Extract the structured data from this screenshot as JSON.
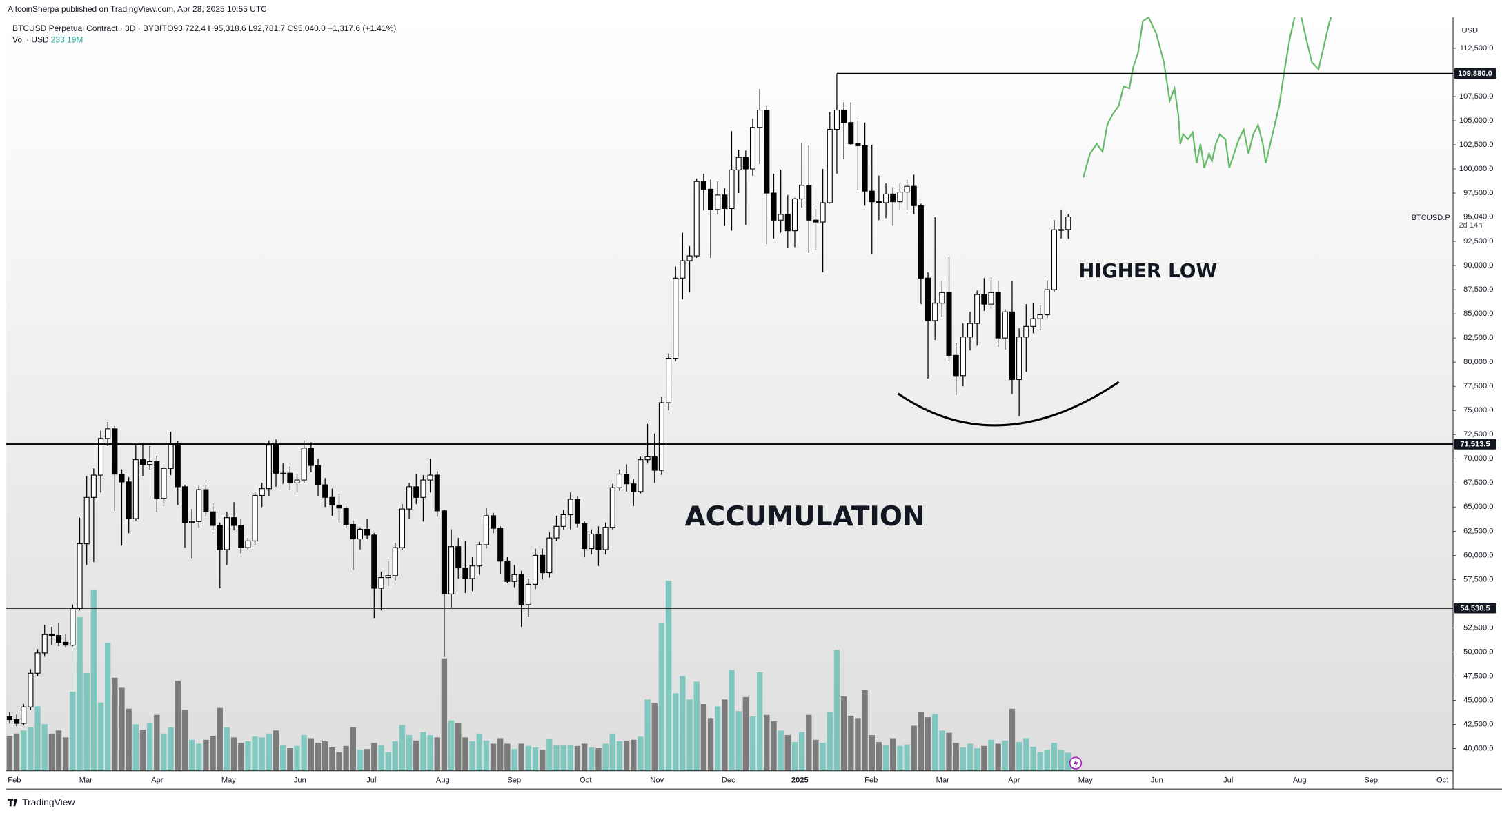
{
  "header": {
    "byline": "AltcoinSherpa published on TradingView.com, Apr 28, 2025 10:55 UTC",
    "symbol": "BTCUSD Perpetual Contract · 3D · BYBIT",
    "ohlc": "O93,722.4  H95,318.6  L92,781.7  C95,040.0  +1,317.6 (+1.41%)",
    "volume_label": "Vol · USD",
    "footer": "TradingView"
  },
  "chart_data": {
    "type": "candlestick",
    "currency": "USD",
    "up_color": "#ffffff",
    "down_color": "#000000",
    "wick_color": "#000000",
    "candles": [
      [
        43300,
        43800,
        42600,
        43000
      ],
      [
        43000,
        43500,
        42300,
        42600
      ],
      [
        42600,
        44600,
        42400,
        44300
      ],
      [
        44300,
        48200,
        44000,
        47800
      ],
      [
        47800,
        50300,
        47500,
        49900
      ],
      [
        49900,
        52800,
        49500,
        51800
      ],
      [
        51800,
        52600,
        50700,
        51700
      ],
      [
        51700,
        53000,
        50600,
        51000
      ],
      [
        51000,
        51800,
        50500,
        50700
      ],
      [
        50700,
        54900,
        50600,
        54500
      ],
      [
        54500,
        63900,
        54300,
        61200
      ],
      [
        61200,
        68200,
        59000,
        66000
      ],
      [
        66000,
        69000,
        59300,
        68300
      ],
      [
        68300,
        72900,
        66500,
        72100
      ],
      [
        72100,
        73800,
        71300,
        73100
      ],
      [
        73100,
        73400,
        64600,
        68400
      ],
      [
        68400,
        68900,
        61000,
        67600
      ],
      [
        67600,
        68100,
        62300,
        63800
      ],
      [
        63800,
        71400,
        63600,
        69900
      ],
      [
        69900,
        71600,
        68200,
        69400
      ],
      [
        69400,
        71300,
        68900,
        69700
      ],
      [
        69700,
        70300,
        64500,
        65900
      ],
      [
        65900,
        69200,
        65100,
        69000
      ],
      [
        69000,
        72800,
        68300,
        71600
      ],
      [
        71600,
        71800,
        65200,
        67100
      ],
      [
        67100,
        67300,
        60800,
        63400
      ],
      [
        63400,
        64800,
        59700,
        63500
      ],
      [
        63500,
        67200,
        62900,
        66800
      ],
      [
        66800,
        67300,
        64000,
        64500
      ],
      [
        64500,
        65400,
        62600,
        63100
      ],
      [
        63100,
        63400,
        56600,
        60600
      ],
      [
        60600,
        64500,
        59000,
        63900
      ],
      [
        63900,
        65500,
        62600,
        63100
      ],
      [
        63100,
        63800,
        60200,
        60800
      ],
      [
        60800,
        61800,
        60600,
        61500
      ],
      [
        61500,
        66600,
        61100,
        66200
      ],
      [
        66200,
        67500,
        65000,
        66900
      ],
      [
        66900,
        71900,
        66100,
        71400
      ],
      [
        71400,
        72000,
        67100,
        68500
      ],
      [
        68500,
        69500,
        67400,
        68500
      ],
      [
        68500,
        69200,
        66700,
        67500
      ],
      [
        67500,
        68400,
        66500,
        67800
      ],
      [
        67800,
        71900,
        67500,
        71100
      ],
      [
        71100,
        71700,
        68600,
        69300
      ],
      [
        69300,
        70000,
        66100,
        67300
      ],
      [
        67300,
        68000,
        65000,
        66000
      ],
      [
        66000,
        66900,
        64100,
        65200
      ],
      [
        65200,
        66400,
        63400,
        64900
      ],
      [
        64900,
        65100,
        62800,
        63200
      ],
      [
        63200,
        63600,
        58500,
        61700
      ],
      [
        61700,
        62900,
        60600,
        62700
      ],
      [
        62700,
        63800,
        61700,
        62100
      ],
      [
        62100,
        62300,
        53500,
        56600
      ],
      [
        56600,
        58300,
        54300,
        57700
      ],
      [
        57700,
        59400,
        56800,
        57900
      ],
      [
        57900,
        61300,
        57400,
        60800
      ],
      [
        60800,
        65300,
        60600,
        64800
      ],
      [
        64800,
        67500,
        63800,
        67100
      ],
      [
        67100,
        68400,
        65300,
        66000
      ],
      [
        66000,
        68300,
        63500,
        67800
      ],
      [
        67800,
        70000,
        66500,
        68300
      ],
      [
        68300,
        68700,
        64000,
        64600
      ],
      [
        64600,
        64700,
        49500,
        56000
      ],
      [
        56000,
        62700,
        54600,
        60900
      ],
      [
        60900,
        61800,
        57600,
        58700
      ],
      [
        58700,
        61500,
        56100,
        57600
      ],
      [
        57600,
        59800,
        56300,
        58900
      ],
      [
        58900,
        61400,
        58000,
        61100
      ],
      [
        61100,
        64900,
        60700,
        64100
      ],
      [
        64100,
        64400,
        62300,
        62800
      ],
      [
        62800,
        63000,
        58100,
        59400
      ],
      [
        59400,
        59800,
        57100,
        57300
      ],
      [
        57300,
        59000,
        56700,
        58000
      ],
      [
        58000,
        58400,
        52600,
        54900
      ],
      [
        54900,
        57600,
        53600,
        57000
      ],
      [
        57000,
        60700,
        56500,
        60000
      ],
      [
        60000,
        60700,
        57500,
        58200
      ],
      [
        58200,
        62400,
        57700,
        61800
      ],
      [
        61800,
        64100,
        61500,
        63000
      ],
      [
        63000,
        64700,
        62700,
        64200
      ],
      [
        64200,
        66500,
        62700,
        65800
      ],
      [
        65800,
        66100,
        62900,
        63300
      ],
      [
        63300,
        63500,
        59800,
        60700
      ],
      [
        60700,
        62700,
        60100,
        62200
      ],
      [
        62200,
        63000,
        58900,
        60600
      ],
      [
        60600,
        63400,
        60100,
        62900
      ],
      [
        62900,
        67400,
        62700,
        67000
      ],
      [
        67000,
        68900,
        66700,
        68400
      ],
      [
        68400,
        69400,
        66600,
        67400
      ],
      [
        67400,
        67900,
        65100,
        66600
      ],
      [
        66600,
        70200,
        66400,
        69900
      ],
      [
        69900,
        73600,
        69500,
        70200
      ],
      [
        70200,
        72600,
        67500,
        68800
      ],
      [
        68800,
        76400,
        68300,
        75800
      ],
      [
        75800,
        80900,
        75000,
        80400
      ],
      [
        80400,
        89900,
        80100,
        88700
      ],
      [
        88700,
        93400,
        86500,
        90500
      ],
      [
        90500,
        92000,
        87200,
        91000
      ],
      [
        91000,
        99000,
        90800,
        98700
      ],
      [
        98700,
        99500,
        95700,
        97900
      ],
      [
        97900,
        98900,
        90800,
        95800
      ],
      [
        95800,
        98700,
        95300,
        97300
      ],
      [
        97300,
        98000,
        94100,
        95900
      ],
      [
        95900,
        103900,
        93600,
        99900
      ],
      [
        99900,
        102000,
        97500,
        101200
      ],
      [
        101200,
        101900,
        94200,
        100000
      ],
      [
        100000,
        105200,
        99300,
        104300
      ],
      [
        104300,
        108300,
        100500,
        106100
      ],
      [
        106100,
        106500,
        92200,
        97500
      ],
      [
        97500,
        99500,
        92800,
        94700
      ],
      [
        94700,
        99900,
        93400,
        95300
      ],
      [
        95300,
        97300,
        91800,
        93600
      ],
      [
        93600,
        97000,
        91900,
        96900
      ],
      [
        96900,
        102700,
        96000,
        98300
      ],
      [
        98300,
        102400,
        91300,
        94700
      ],
      [
        94700,
        95900,
        91600,
        94500
      ],
      [
        94500,
        100000,
        89300,
        96500
      ],
      [
        96500,
        105900,
        96400,
        104100
      ],
      [
        104100,
        109880,
        99500,
        106100
      ],
      [
        106100,
        106900,
        101000,
        104800
      ],
      [
        104800,
        106900,
        102500,
        102600
      ],
      [
        102600,
        105000,
        97800,
        102400
      ],
      [
        102400,
        104800,
        96200,
        97700
      ],
      [
        97700,
        102500,
        91200,
        96600
      ],
      [
        96600,
        99300,
        94700,
        96500
      ],
      [
        96500,
        98500,
        94900,
        97400
      ],
      [
        97400,
        98100,
        94100,
        96600
      ],
      [
        96600,
        98500,
        95800,
        97600
      ],
      [
        97600,
        98900,
        95700,
        98200
      ],
      [
        98200,
        99400,
        95300,
        96200
      ],
      [
        96200,
        96400,
        86000,
        88700
      ],
      [
        88700,
        89300,
        78300,
        84300
      ],
      [
        84300,
        95000,
        82300,
        86100
      ],
      [
        86100,
        88400,
        84700,
        87200
      ],
      [
        87200,
        90900,
        80100,
        80700
      ],
      [
        80700,
        82000,
        76600,
        78600
      ],
      [
        78600,
        84000,
        77500,
        82600
      ],
      [
        82600,
        85200,
        81200,
        84000
      ],
      [
        84000,
        87400,
        81700,
        87000
      ],
      [
        87000,
        88700,
        85300,
        86000
      ],
      [
        86000,
        88800,
        85500,
        87200
      ],
      [
        87200,
        88400,
        81600,
        82500
      ],
      [
        82500,
        85500,
        81300,
        85200
      ],
      [
        85200,
        88400,
        76700,
        78200
      ],
      [
        78200,
        83500,
        74400,
        82600
      ],
      [
        82600,
        86000,
        79000,
        83700
      ],
      [
        83700,
        86100,
        83000,
        84500
      ],
      [
        84500,
        85900,
        83300,
        84900
      ],
      [
        84900,
        88500,
        84600,
        87500
      ],
      [
        87500,
        94700,
        87300,
        93700
      ],
      [
        93700,
        95800,
        92800,
        93722.4
      ],
      [
        93722.4,
        95318.6,
        92781.7,
        95040
      ]
    ],
    "volume": {
      "up_color": "#80c7bf",
      "down_color": "#7b7b7b",
      "ylim": [
        0,
        2600
      ],
      "last_label": "233.19M",
      "values": [
        450,
        480,
        520,
        560,
        830,
        600,
        480,
        520,
        430,
        1020,
        1980,
        1260,
        2330,
        880,
        1650,
        1200,
        1070,
        800,
        600,
        530,
        620,
        720,
        480,
        560,
        1160,
        780,
        400,
        350,
        400,
        450,
        810,
        560,
        430,
        360,
        380,
        440,
        430,
        480,
        520,
        330,
        290,
        320,
        460,
        420,
        360,
        380,
        300,
        240,
        320,
        560,
        270,
        280,
        360,
        330,
        240,
        380,
        590,
        460,
        390,
        500,
        460,
        430,
        1450,
        650,
        620,
        430,
        380,
        480,
        390,
        350,
        420,
        350,
        280,
        350,
        320,
        300,
        270,
        410,
        330,
        330,
        330,
        320,
        350,
        300,
        290,
        350,
        480,
        380,
        380,
        400,
        440,
        920,
        870,
        1900,
        2450,
        1000,
        1220,
        920,
        1150,
        860,
        680,
        830,
        920,
        1300,
        770,
        950,
        700,
        1270,
        720,
        640,
        520,
        460,
        370,
        500,
        720,
        400,
        360,
        760,
        1560,
        960,
        710,
        680,
        1040,
        460,
        370,
        330,
        420,
        320,
        340,
        580,
        760,
        690,
        730,
        520,
        490,
        360,
        300,
        350,
        290,
        320,
        400,
        350,
        390,
        800,
        370,
        420,
        310,
        240,
        270,
        360,
        270,
        233.19
      ]
    },
    "ylim": [
      37700,
      115700
    ],
    "yticks": [
      {
        "value": 40000,
        "label": "40,000.0"
      },
      {
        "value": 42500,
        "label": "42,500.0"
      },
      {
        "value": 45000,
        "label": "45,000.0"
      },
      {
        "value": 47500,
        "label": "47,500.0"
      },
      {
        "value": 50000,
        "label": "50,000.0"
      },
      {
        "value": 52500,
        "label": "52,500.0"
      },
      {
        "value": 57500,
        "label": "57,500.0"
      },
      {
        "value": 60000,
        "label": "60,000.0"
      },
      {
        "value": 62500,
        "label": "62,500.0"
      },
      {
        "value": 65000,
        "label": "65,000.0"
      },
      {
        "value": 67500,
        "label": "67,500.0"
      },
      {
        "value": 70000,
        "label": "70,000.0"
      },
      {
        "value": 72500,
        "label": "72,500.0"
      },
      {
        "value": 75000,
        "label": "75,000.0"
      },
      {
        "value": 77500,
        "label": "77,500.0"
      },
      {
        "value": 80000,
        "label": "80,000.0"
      },
      {
        "value": 82500,
        "label": "82,500.0"
      },
      {
        "value": 85000,
        "label": "85,000.0"
      },
      {
        "value": 87500,
        "label": "87,500.0"
      },
      {
        "value": 90000,
        "label": "90,000.0"
      },
      {
        "value": 92500,
        "label": "92,500.0"
      },
      {
        "value": 97500,
        "label": "97,500.0"
      },
      {
        "value": 100000,
        "label": "100,000.0"
      },
      {
        "value": 102500,
        "label": "102,500.0"
      },
      {
        "value": 105000,
        "label": "105,000.0"
      },
      {
        "value": 107500,
        "label": "107,500.0"
      },
      {
        "value": 112500,
        "label": "112,500.0"
      }
    ],
    "grid": false,
    "x_ticks": [
      "Feb",
      "Mar",
      "Apr",
      "May",
      "Jun",
      "Jul",
      "Aug",
      "Sep",
      "Oct",
      "Nov",
      "Dec",
      "2025",
      "Feb",
      "Mar",
      "Apr",
      "May",
      "Jun",
      "Jul",
      "Aug",
      "Sep",
      "Oct"
    ],
    "levels": [
      {
        "value": 109880,
        "label": "109,880.0"
      },
      {
        "value": 71513.5,
        "label": "71,513.5"
      },
      {
        "value": 54538.5,
        "label": "54,538.5"
      }
    ],
    "price_tag": {
      "symbol": "BTCUSD.P",
      "price": {
        "value": 95040,
        "label": "95,040.0"
      },
      "countdown": "2d 14h"
    },
    "annotations": [
      "ACCUMULATION",
      "HIGHER LOW"
    ]
  }
}
